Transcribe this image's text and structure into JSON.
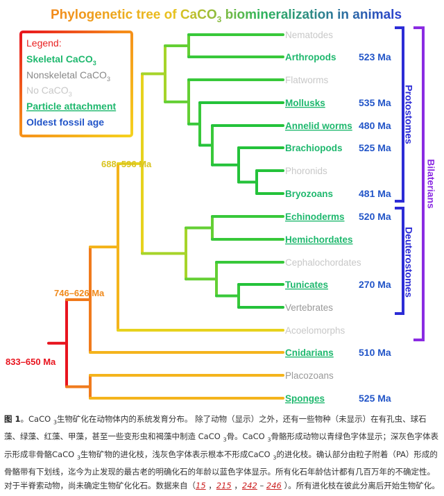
{
  "title": {
    "main": "Phylogenetic tree of CaCO",
    "sub": "3",
    "rest": " biomineralization in animals"
  },
  "legend": {
    "heading": "Legend:",
    "skeletal": {
      "main": "Skeletal CaCO",
      "sub": "3"
    },
    "nonskeletal": {
      "main": "Nonskeletal CaCO",
      "sub": "3"
    },
    "none": {
      "main": "No CaCO",
      "sub": "3"
    },
    "particle": "Particle attachment",
    "oldest": "Oldest fossil age"
  },
  "colors": {
    "skeletal": "#1fb86e",
    "nonskeletal": "#999999",
    "none": "#c8c8c8",
    "age": "#2255c8",
    "bracket_blue": "#2c2cd6",
    "bracket_purple": "#8a2be2"
  },
  "nodes": {
    "root": "833–650 Ma",
    "mid": "746–626 Ma",
    "bilat": "688–596 Ma"
  },
  "taxa": [
    {
      "name": "Nematodes",
      "type": "none",
      "pa": false,
      "age": ""
    },
    {
      "name": "Arthropods",
      "type": "skeletal",
      "pa": false,
      "age": "523 Ma"
    },
    {
      "name": "Flatworms",
      "type": "none",
      "pa": false,
      "age": ""
    },
    {
      "name": "Mollusks",
      "type": "skeletal",
      "pa": true,
      "age": "535 Ma"
    },
    {
      "name": "Annelid worms",
      "type": "skeletal",
      "pa": true,
      "age": "480 Ma"
    },
    {
      "name": "Brachiopods",
      "type": "skeletal",
      "pa": false,
      "age": "525 Ma"
    },
    {
      "name": "Phoronids",
      "type": "none",
      "pa": false,
      "age": ""
    },
    {
      "name": "Bryozoans",
      "type": "skeletal",
      "pa": false,
      "age": "481 Ma"
    },
    {
      "name": "Echinoderms",
      "type": "skeletal",
      "pa": true,
      "age": "520 Ma"
    },
    {
      "name": "Hemichordates",
      "type": "skeletal",
      "pa": true,
      "age": ""
    },
    {
      "name": "Cephalochordates",
      "type": "none",
      "pa": false,
      "age": ""
    },
    {
      "name": "Tunicates",
      "type": "skeletal",
      "pa": true,
      "age": "270 Ma"
    },
    {
      "name": "Vertebrates",
      "type": "nonskeletal",
      "pa": false,
      "age": ""
    },
    {
      "name": "Acoelomorphs",
      "type": "none",
      "pa": false,
      "age": ""
    },
    {
      "name": "Cnidarians",
      "type": "skeletal",
      "pa": true,
      "age": "510 Ma"
    },
    {
      "name": "Placozoans",
      "type": "nonskeletal",
      "pa": false,
      "age": ""
    },
    {
      "name": "Sponges",
      "type": "skeletal",
      "pa": true,
      "age": "525 Ma"
    }
  ],
  "brackets": {
    "protostomes": "Protostomes",
    "deuterostomes": "Deuterostomes",
    "bilaterians": "Bilaterians"
  },
  "caption": {
    "fig": "图 1",
    "t1": "。CaCO ",
    "s1": "3",
    "t2": "生物矿化在动物体内的系统发育分布。 除了动物（显示）之外，还有一些物种（未显示）在有孔虫、球石藻、绿藻、红藻、甲藻，甚至一些变形虫和褐藻中制造 CaCO ",
    "s2": "3",
    "t3": "骨。CaCO ",
    "s3": "3",
    "t4": "骨骼形成动物以青绿色字体显示；深灰色字体表示形成非骨骼CaCO ",
    "s4": "3",
    "t5": "生物矿物的进化枝，浅灰色字体表示根本不形成CaCO ",
    "s5": "3",
    "t6": "的进化枝。确认部分由粒子附着（PA）形成的骨骼带有下划线，迄今为止发现的最古老的明确化石的年龄以蓝色字体显示。所有化石年龄估计都有几百万年的不确定性。对于半脊索动物，尚未确定生物矿化化石。数据来自（",
    "r1": "15",
    "sep1": " ，",
    "r2": "215",
    "sep2": " ，",
    "r3": "242",
    "sep3": " – ",
    "r4": "246",
    "t7": " ）。所有进化枝在彼此分离后开始生物矿化。"
  }
}
